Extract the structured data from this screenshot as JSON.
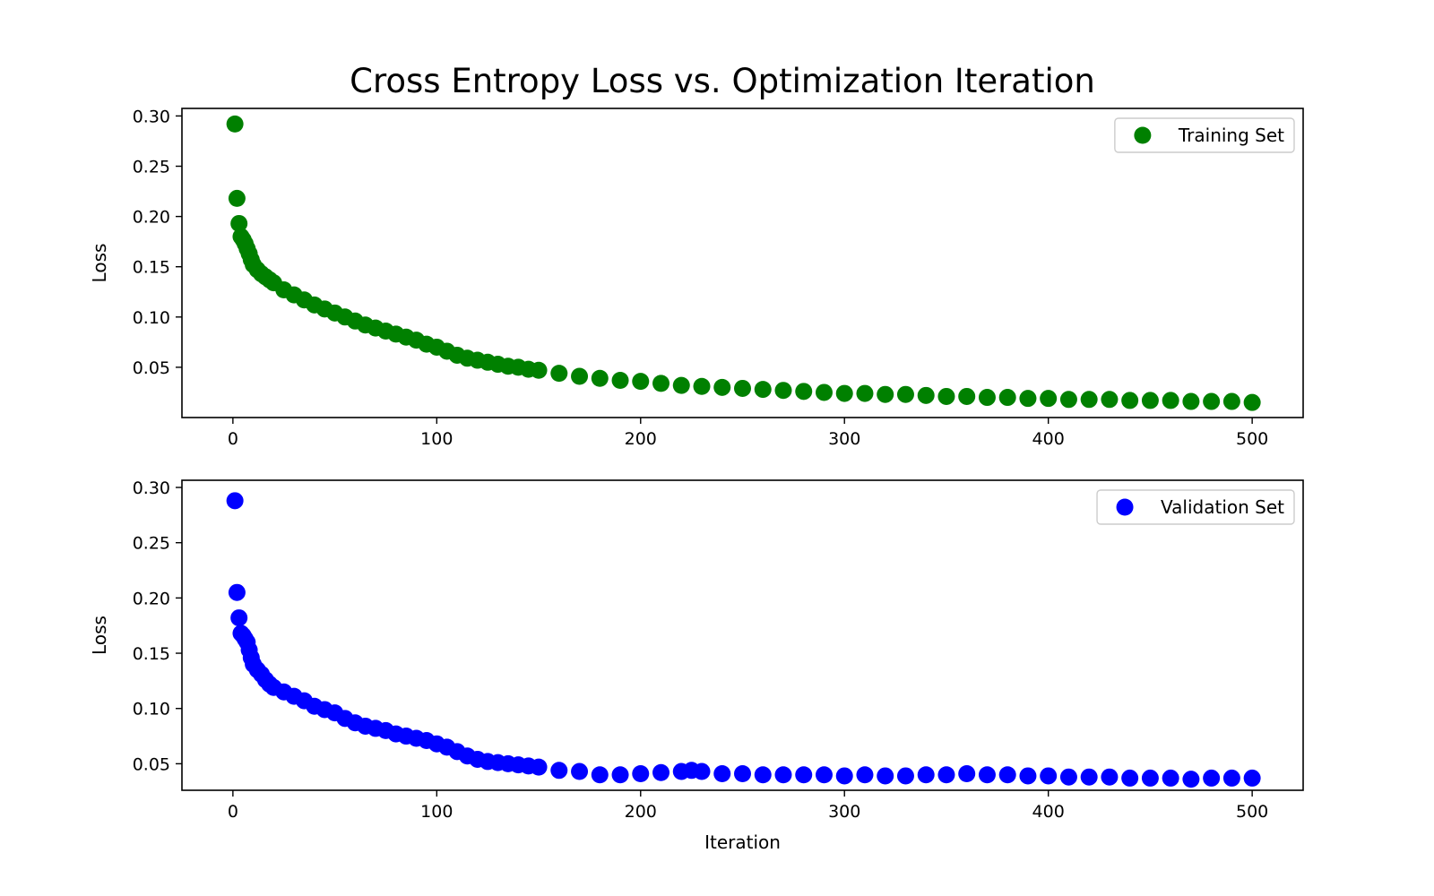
{
  "figure": {
    "title": "Cross Entropy Loss vs. Optimization Iteration"
  },
  "chart_data": [
    {
      "type": "scatter",
      "title": "",
      "xlabel": "",
      "ylabel": "Loss",
      "xlim": [
        -25,
        525
      ],
      "ylim": [
        0.0,
        0.3075
      ],
      "xticks": [
        0,
        100,
        200,
        300,
        400,
        500
      ],
      "yticks": [
        0.05,
        0.1,
        0.15,
        0.2,
        0.25,
        0.3
      ],
      "ytick_labels": [
        "0.05",
        "0.10",
        "0.15",
        "0.20",
        "0.25",
        "0.30"
      ],
      "legend_position": "top-right",
      "grid": false,
      "series": [
        {
          "name": "Training Set",
          "color": "#008000",
          "x": [
            1,
            2,
            3,
            4,
            5,
            6,
            7,
            8,
            9,
            10,
            12,
            14,
            16,
            18,
            20,
            25,
            30,
            35,
            40,
            45,
            50,
            55,
            60,
            65,
            70,
            75,
            80,
            85,
            90,
            95,
            100,
            105,
            110,
            115,
            120,
            125,
            130,
            135,
            140,
            145,
            150,
            160,
            170,
            180,
            190,
            200,
            210,
            220,
            230,
            240,
            250,
            260,
            270,
            280,
            290,
            300,
            310,
            320,
            330,
            340,
            350,
            360,
            370,
            380,
            390,
            400,
            410,
            420,
            430,
            440,
            450,
            460,
            470,
            480,
            490,
            500
          ],
          "y": [
            0.292,
            0.218,
            0.193,
            0.18,
            0.177,
            0.173,
            0.168,
            0.163,
            0.157,
            0.152,
            0.147,
            0.143,
            0.14,
            0.137,
            0.134,
            0.127,
            0.122,
            0.117,
            0.112,
            0.108,
            0.104,
            0.1,
            0.096,
            0.092,
            0.089,
            0.086,
            0.083,
            0.08,
            0.077,
            0.073,
            0.07,
            0.066,
            0.062,
            0.059,
            0.057,
            0.055,
            0.053,
            0.051,
            0.05,
            0.048,
            0.047,
            0.044,
            0.041,
            0.039,
            0.037,
            0.036,
            0.034,
            0.032,
            0.031,
            0.03,
            0.029,
            0.028,
            0.027,
            0.026,
            0.025,
            0.024,
            0.024,
            0.023,
            0.023,
            0.022,
            0.021,
            0.021,
            0.02,
            0.02,
            0.019,
            0.019,
            0.018,
            0.018,
            0.018,
            0.017,
            0.017,
            0.017,
            0.016,
            0.016,
            0.016,
            0.015
          ]
        }
      ]
    },
    {
      "type": "scatter",
      "title": "",
      "xlabel": "Iteration",
      "ylabel": "Loss",
      "xlim": [
        -25,
        525
      ],
      "ylim": [
        0.026,
        0.3065
      ],
      "xticks": [
        0,
        100,
        200,
        300,
        400,
        500
      ],
      "yticks": [
        0.05,
        0.1,
        0.15,
        0.2,
        0.25,
        0.3
      ],
      "ytick_labels": [
        "0.05",
        "0.10",
        "0.15",
        "0.20",
        "0.25",
        "0.30"
      ],
      "legend_position": "top-right",
      "grid": false,
      "series": [
        {
          "name": "Validation Set",
          "color": "#0000ff",
          "x": [
            1,
            2,
            3,
            4,
            5,
            6,
            7,
            8,
            9,
            10,
            12,
            14,
            16,
            18,
            20,
            25,
            30,
            35,
            40,
            45,
            50,
            55,
            60,
            65,
            70,
            75,
            80,
            85,
            90,
            95,
            100,
            105,
            110,
            115,
            120,
            125,
            130,
            135,
            140,
            145,
            150,
            160,
            170,
            180,
            190,
            200,
            210,
            220,
            225,
            230,
            240,
            250,
            260,
            270,
            280,
            290,
            300,
            310,
            320,
            330,
            340,
            350,
            360,
            370,
            380,
            390,
            400,
            410,
            420,
            430,
            440,
            450,
            460,
            470,
            480,
            490,
            500
          ],
          "y": [
            0.288,
            0.205,
            0.182,
            0.168,
            0.166,
            0.163,
            0.16,
            0.153,
            0.146,
            0.14,
            0.135,
            0.131,
            0.126,
            0.122,
            0.119,
            0.115,
            0.111,
            0.107,
            0.102,
            0.099,
            0.096,
            0.091,
            0.087,
            0.084,
            0.082,
            0.08,
            0.077,
            0.075,
            0.073,
            0.071,
            0.068,
            0.065,
            0.061,
            0.057,
            0.054,
            0.052,
            0.051,
            0.05,
            0.049,
            0.048,
            0.047,
            0.044,
            0.043,
            0.04,
            0.04,
            0.041,
            0.042,
            0.043,
            0.044,
            0.043,
            0.041,
            0.041,
            0.04,
            0.04,
            0.04,
            0.04,
            0.039,
            0.04,
            0.039,
            0.039,
            0.04,
            0.04,
            0.041,
            0.04,
            0.04,
            0.039,
            0.039,
            0.038,
            0.038,
            0.038,
            0.037,
            0.037,
            0.037,
            0.036,
            0.037,
            0.037,
            0.037
          ]
        }
      ]
    }
  ]
}
